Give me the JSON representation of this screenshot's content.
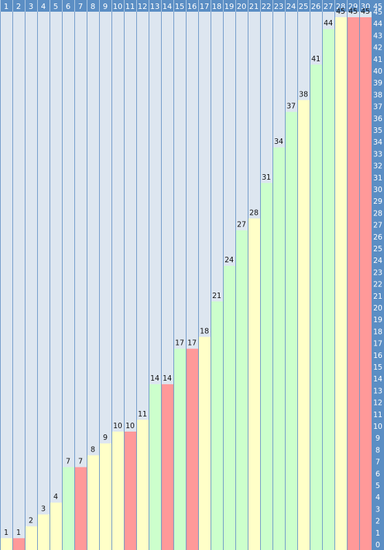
{
  "chart_data": {
    "type": "bar",
    "categories": [
      "1",
      "2",
      "3",
      "4",
      "5",
      "6",
      "7",
      "8",
      "9",
      "10",
      "11",
      "12",
      "13",
      "14",
      "15",
      "16",
      "17",
      "18",
      "19",
      "20",
      "21",
      "22",
      "23",
      "24",
      "25",
      "26",
      "27",
      "28",
      "29",
      "30"
    ],
    "values": [
      1,
      1,
      2,
      3,
      4,
      7,
      7,
      8,
      9,
      10,
      10,
      11,
      14,
      14,
      17,
      17,
      18,
      21,
      24,
      27,
      28,
      31,
      34,
      37,
      38,
      41,
      44,
      45,
      45,
      45
    ],
    "bar_states": [
      "yellow",
      "red",
      "yellow",
      "yellow",
      "yellow",
      "green",
      "red",
      "yellow",
      "yellow",
      "yellow",
      "red",
      "yellow",
      "green",
      "red",
      "green",
      "red",
      "yellow",
      "green",
      "green",
      "green",
      "yellow",
      "green",
      "green",
      "green",
      "yellow",
      "green",
      "green",
      "yellow",
      "red",
      "red"
    ],
    "y_ticks": [
      "0",
      "1",
      "2",
      "3",
      "4",
      "5",
      "6",
      "7",
      "8",
      "9",
      "10",
      "11",
      "12",
      "13",
      "14",
      "15",
      "16",
      "17",
      "18",
      "19",
      "20",
      "21",
      "22",
      "23",
      "24",
      "25",
      "26",
      "27",
      "28",
      "29",
      "30",
      "31",
      "32",
      "33",
      "34",
      "35",
      "36",
      "37",
      "38",
      "39",
      "40",
      "41",
      "42",
      "43",
      "44",
      "45"
    ],
    "ylim": [
      0,
      45
    ],
    "grid": true,
    "colors": {
      "header_bg": "#5b8ec4",
      "background": "#dde6f0",
      "grid_line": "#6b96c8",
      "green": "#ccffcc",
      "yellow": "#ffffc8",
      "red": "#ff9999"
    }
  }
}
